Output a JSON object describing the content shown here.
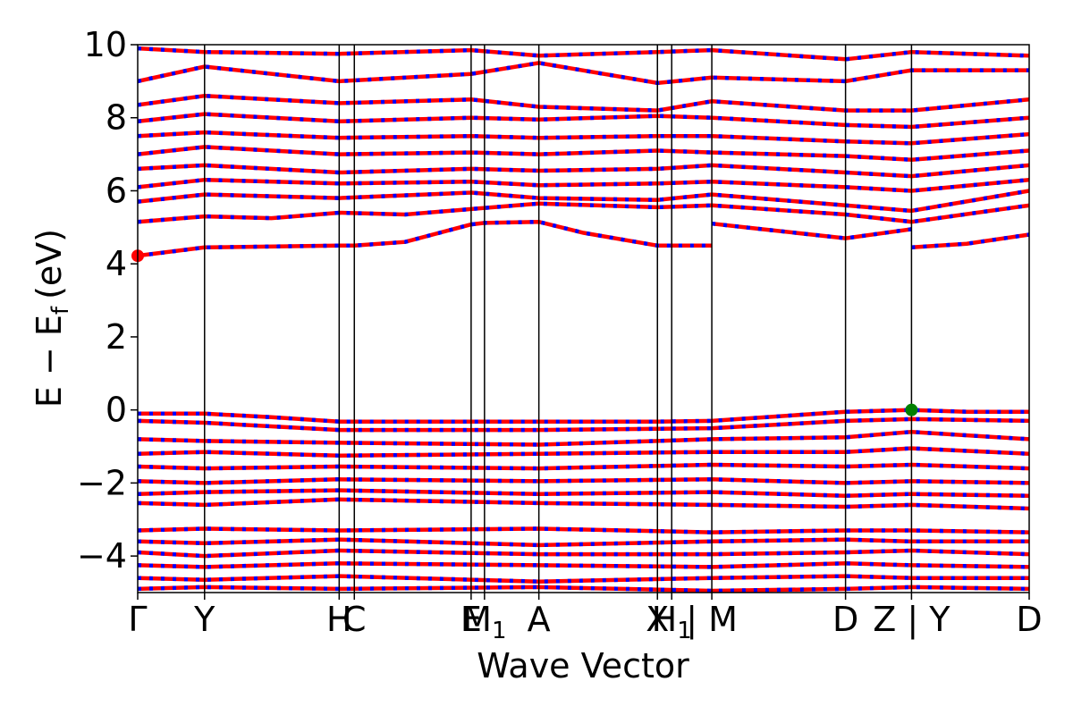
{
  "chart_data": {
    "type": "line",
    "xlabel": "Wave Vector",
    "ylabel": "E − E_f (eV)",
    "ylabel_parts": {
      "main": "E − E",
      "sub": "f",
      "unit": "(eV)"
    },
    "ylim": [
      -5,
      10
    ],
    "yticks": [
      {
        "value": -4,
        "label": "−4"
      },
      {
        "value": -2,
        "label": "−2"
      },
      {
        "value": 0,
        "label": "0"
      },
      {
        "value": 2,
        "label": "2"
      },
      {
        "value": 4,
        "label": "4"
      },
      {
        "value": 6,
        "label": "6"
      },
      {
        "value": 8,
        "label": "8"
      },
      {
        "value": 10,
        "label": "10"
      }
    ],
    "xlim": [
      0,
      1
    ],
    "kpath": [
      {
        "pos": 0.0,
        "label": "Γ"
      },
      {
        "pos": 0.075,
        "label": "Y"
      },
      {
        "pos": 0.226,
        "label": "H"
      },
      {
        "pos": 0.243,
        "label": "C"
      },
      {
        "pos": 0.374,
        "label": "E"
      },
      {
        "pos": 0.389,
        "label": "M",
        "sub": "1"
      },
      {
        "pos": 0.45,
        "label": "A"
      },
      {
        "pos": 0.583,
        "label": "X"
      },
      {
        "pos": 0.599,
        "label": "H",
        "sub": "1"
      },
      {
        "pos": 0.644,
        "label": "| M"
      },
      {
        "pos": 0.794,
        "label": "D"
      },
      {
        "pos": 0.868,
        "label": "Z | Y"
      },
      {
        "pos": 1.0,
        "label": "D"
      }
    ],
    "band_style": {
      "up_color": "#ff0000",
      "down_color": "#0000ff",
      "dash": "dashed"
    },
    "vbm": {
      "x": 0.868,
      "y": 0.0,
      "color": "#008000"
    },
    "cbm": {
      "x": 0.0,
      "y": 4.22,
      "color": "#ff0000"
    },
    "series": [
      {
        "values": [
          [
            0,
            4.22
          ],
          [
            0.075,
            4.45
          ],
          [
            0.226,
            4.5
          ],
          [
            0.243,
            4.5
          ],
          [
            0.3,
            4.6
          ],
          [
            0.374,
            5.08
          ],
          [
            0.389,
            5.12
          ],
          [
            0.45,
            5.15
          ],
          [
            0.5,
            4.85
          ],
          [
            0.583,
            4.5
          ],
          [
            0.644,
            4.5
          ]
        ]
      },
      {
        "values": [
          [
            0.644,
            5.1
          ],
          [
            0.7,
            4.95
          ],
          [
            0.794,
            4.7
          ],
          [
            0.868,
            4.95
          ]
        ]
      },
      {
        "values": [
          [
            0.868,
            4.45
          ],
          [
            0.93,
            4.55
          ],
          [
            1.0,
            4.8
          ]
        ]
      },
      {
        "values": [
          [
            0,
            5.15
          ],
          [
            0.075,
            5.3
          ],
          [
            0.15,
            5.25
          ],
          [
            0.226,
            5.4
          ],
          [
            0.3,
            5.35
          ],
          [
            0.374,
            5.5
          ],
          [
            0.45,
            5.65
          ],
          [
            0.583,
            5.55
          ],
          [
            0.644,
            5.6
          ],
          [
            0.794,
            5.35
          ],
          [
            0.868,
            5.15
          ],
          [
            1.0,
            5.6
          ]
        ]
      },
      {
        "values": [
          [
            0,
            5.7
          ],
          [
            0.075,
            5.9
          ],
          [
            0.226,
            5.8
          ],
          [
            0.374,
            5.95
          ],
          [
            0.45,
            5.8
          ],
          [
            0.583,
            5.75
          ],
          [
            0.644,
            5.9
          ],
          [
            0.794,
            5.6
          ],
          [
            0.868,
            5.45
          ],
          [
            1.0,
            6.0
          ]
        ]
      },
      {
        "values": [
          [
            0,
            6.1
          ],
          [
            0.075,
            6.3
          ],
          [
            0.226,
            6.2
          ],
          [
            0.374,
            6.25
          ],
          [
            0.45,
            6.15
          ],
          [
            0.583,
            6.2
          ],
          [
            0.644,
            6.25
          ],
          [
            0.794,
            6.1
          ],
          [
            0.868,
            6.0
          ],
          [
            1.0,
            6.3
          ]
        ]
      },
      {
        "values": [
          [
            0,
            6.6
          ],
          [
            0.075,
            6.7
          ],
          [
            0.226,
            6.5
          ],
          [
            0.374,
            6.6
          ],
          [
            0.45,
            6.55
          ],
          [
            0.583,
            6.6
          ],
          [
            0.644,
            6.7
          ],
          [
            0.794,
            6.5
          ],
          [
            0.868,
            6.4
          ],
          [
            1.0,
            6.7
          ]
        ]
      },
      {
        "values": [
          [
            0,
            7.0
          ],
          [
            0.075,
            7.2
          ],
          [
            0.226,
            7.0
          ],
          [
            0.374,
            7.05
          ],
          [
            0.45,
            7.0
          ],
          [
            0.583,
            7.1
          ],
          [
            0.644,
            7.05
          ],
          [
            0.794,
            6.95
          ],
          [
            0.868,
            6.85
          ],
          [
            1.0,
            7.1
          ]
        ]
      },
      {
        "values": [
          [
            0,
            7.5
          ],
          [
            0.075,
            7.6
          ],
          [
            0.226,
            7.45
          ],
          [
            0.374,
            7.5
          ],
          [
            0.45,
            7.45
          ],
          [
            0.583,
            7.5
          ],
          [
            0.644,
            7.5
          ],
          [
            0.794,
            7.35
          ],
          [
            0.868,
            7.3
          ],
          [
            1.0,
            7.55
          ]
        ]
      },
      {
        "values": [
          [
            0,
            7.9
          ],
          [
            0.075,
            8.1
          ],
          [
            0.226,
            7.9
          ],
          [
            0.374,
            8.0
          ],
          [
            0.45,
            7.95
          ],
          [
            0.583,
            8.05
          ],
          [
            0.644,
            8.0
          ],
          [
            0.794,
            7.8
          ],
          [
            0.868,
            7.75
          ],
          [
            1.0,
            8.0
          ]
        ]
      },
      {
        "values": [
          [
            0,
            8.35
          ],
          [
            0.075,
            8.6
          ],
          [
            0.226,
            8.4
          ],
          [
            0.374,
            8.5
          ],
          [
            0.45,
            8.3
          ],
          [
            0.583,
            8.2
          ],
          [
            0.644,
            8.45
          ],
          [
            0.794,
            8.2
          ],
          [
            0.868,
            8.2
          ],
          [
            1.0,
            8.5
          ]
        ]
      },
      {
        "values": [
          [
            0,
            9.0
          ],
          [
            0.075,
            9.4
          ],
          [
            0.226,
            9.0
          ],
          [
            0.374,
            9.2
          ],
          [
            0.45,
            9.5
          ],
          [
            0.583,
            8.95
          ],
          [
            0.644,
            9.1
          ],
          [
            0.794,
            9.0
          ],
          [
            0.868,
            9.3
          ],
          [
            1.0,
            9.3
          ]
        ]
      },
      {
        "values": [
          [
            0,
            9.9
          ],
          [
            0.075,
            9.8
          ],
          [
            0.226,
            9.75
          ],
          [
            0.374,
            9.85
          ],
          [
            0.45,
            9.7
          ],
          [
            0.583,
            9.8
          ],
          [
            0.644,
            9.85
          ],
          [
            0.794,
            9.6
          ],
          [
            0.868,
            9.8
          ],
          [
            1.0,
            9.7
          ]
        ]
      },
      {
        "values": [
          [
            0,
            -0.1
          ],
          [
            0.075,
            -0.1
          ],
          [
            0.15,
            -0.2
          ],
          [
            0.226,
            -0.32
          ],
          [
            0.45,
            -0.32
          ],
          [
            0.583,
            -0.32
          ],
          [
            0.644,
            -0.3
          ],
          [
            0.794,
            -0.05
          ],
          [
            0.868,
            0.0
          ],
          [
            0.93,
            -0.05
          ],
          [
            1.0,
            -0.05
          ]
        ]
      },
      {
        "values": [
          [
            0,
            -0.3
          ],
          [
            0.075,
            -0.35
          ],
          [
            0.226,
            -0.55
          ],
          [
            0.45,
            -0.55
          ],
          [
            0.644,
            -0.5
          ],
          [
            0.794,
            -0.3
          ],
          [
            0.868,
            -0.25
          ],
          [
            1.0,
            -0.3
          ]
        ]
      },
      {
        "values": [
          [
            0,
            -0.8
          ],
          [
            0.075,
            -0.85
          ],
          [
            0.226,
            -0.9
          ],
          [
            0.45,
            -0.95
          ],
          [
            0.644,
            -0.8
          ],
          [
            0.794,
            -0.75
          ],
          [
            0.868,
            -0.6
          ],
          [
            1.0,
            -0.8
          ]
        ]
      },
      {
        "values": [
          [
            0,
            -1.2
          ],
          [
            0.075,
            -1.15
          ],
          [
            0.226,
            -1.25
          ],
          [
            0.45,
            -1.2
          ],
          [
            0.644,
            -1.15
          ],
          [
            0.794,
            -1.15
          ],
          [
            0.868,
            -1.05
          ],
          [
            1.0,
            -1.2
          ]
        ]
      },
      {
        "values": [
          [
            0,
            -1.55
          ],
          [
            0.075,
            -1.6
          ],
          [
            0.226,
            -1.55
          ],
          [
            0.45,
            -1.6
          ],
          [
            0.644,
            -1.5
          ],
          [
            0.794,
            -1.55
          ],
          [
            0.868,
            -1.5
          ],
          [
            1.0,
            -1.6
          ]
        ]
      },
      {
        "values": [
          [
            0,
            -1.95
          ],
          [
            0.075,
            -2.0
          ],
          [
            0.226,
            -1.9
          ],
          [
            0.45,
            -1.95
          ],
          [
            0.644,
            -1.9
          ],
          [
            0.794,
            -2.0
          ],
          [
            0.868,
            -1.95
          ],
          [
            1.0,
            -2.0
          ]
        ]
      },
      {
        "values": [
          [
            0,
            -2.3
          ],
          [
            0.075,
            -2.25
          ],
          [
            0.226,
            -2.2
          ],
          [
            0.45,
            -2.3
          ],
          [
            0.644,
            -2.25
          ],
          [
            0.794,
            -2.35
          ],
          [
            0.868,
            -2.3
          ],
          [
            1.0,
            -2.35
          ]
        ]
      },
      {
        "values": [
          [
            0,
            -2.55
          ],
          [
            0.075,
            -2.6
          ],
          [
            0.226,
            -2.45
          ],
          [
            0.45,
            -2.55
          ],
          [
            0.644,
            -2.6
          ],
          [
            0.794,
            -2.65
          ],
          [
            0.868,
            -2.6
          ],
          [
            1.0,
            -2.7
          ]
        ]
      },
      {
        "values": [
          [
            0,
            -3.3
          ],
          [
            0.075,
            -3.25
          ],
          [
            0.226,
            -3.3
          ],
          [
            0.45,
            -3.25
          ],
          [
            0.644,
            -3.35
          ],
          [
            0.794,
            -3.3
          ],
          [
            0.868,
            -3.3
          ],
          [
            1.0,
            -3.35
          ]
        ]
      },
      {
        "values": [
          [
            0,
            -3.6
          ],
          [
            0.075,
            -3.65
          ],
          [
            0.226,
            -3.55
          ],
          [
            0.45,
            -3.7
          ],
          [
            0.644,
            -3.6
          ],
          [
            0.794,
            -3.55
          ],
          [
            0.868,
            -3.6
          ],
          [
            1.0,
            -3.6
          ]
        ]
      },
      {
        "values": [
          [
            0,
            -3.9
          ],
          [
            0.075,
            -4.0
          ],
          [
            0.226,
            -3.85
          ],
          [
            0.45,
            -3.95
          ],
          [
            0.644,
            -3.95
          ],
          [
            0.794,
            -3.9
          ],
          [
            0.868,
            -3.85
          ],
          [
            1.0,
            -3.95
          ]
        ]
      },
      {
        "values": [
          [
            0,
            -4.25
          ],
          [
            0.075,
            -4.3
          ],
          [
            0.226,
            -4.2
          ],
          [
            0.45,
            -4.25
          ],
          [
            0.644,
            -4.3
          ],
          [
            0.794,
            -4.2
          ],
          [
            0.868,
            -4.25
          ],
          [
            1.0,
            -4.3
          ]
        ]
      },
      {
        "values": [
          [
            0,
            -4.6
          ],
          [
            0.075,
            -4.65
          ],
          [
            0.226,
            -4.55
          ],
          [
            0.45,
            -4.7
          ],
          [
            0.644,
            -4.6
          ],
          [
            0.794,
            -4.55
          ],
          [
            0.868,
            -4.6
          ],
          [
            1.0,
            -4.6
          ]
        ]
      },
      {
        "values": [
          [
            0,
            -4.9
          ],
          [
            0.075,
            -4.85
          ],
          [
            0.226,
            -4.9
          ],
          [
            0.45,
            -4.85
          ],
          [
            0.644,
            -4.95
          ],
          [
            0.794,
            -4.9
          ],
          [
            0.868,
            -4.85
          ],
          [
            1.0,
            -4.9
          ]
        ]
      }
    ]
  }
}
